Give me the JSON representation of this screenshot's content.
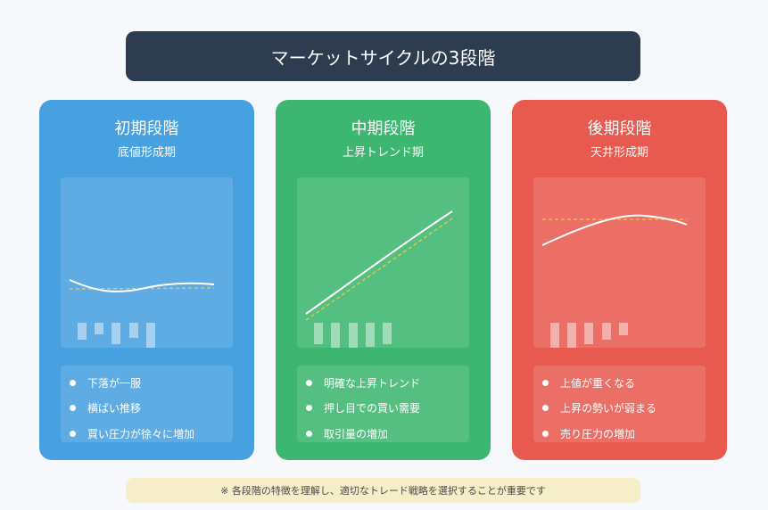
{
  "title": "マーケットサイクルの3段階",
  "note": "※ 各段階の特徴を理解し、適切なトレード戦略を選択することが重要です",
  "colors": {
    "title_bg": "#2e3c4f",
    "early": "#47a0df",
    "middle": "#3cb670",
    "late": "#e85a50",
    "guide_line": "#f2c744",
    "note_bg": "#f6edc9"
  },
  "stages": [
    {
      "title": "初期段階",
      "subtitle": "底値形成期",
      "items": [
        "下落が一服",
        "横ばい推移",
        "買い圧力が徐々に増加"
      ]
    },
    {
      "title": "中期段階",
      "subtitle": "上昇トレンド期",
      "items": [
        "明確な上昇トレンド",
        "押し目での買い需要",
        "取引量の増加"
      ]
    },
    {
      "title": "後期段階",
      "subtitle": "天井形成期",
      "items": [
        "上値が重くなる",
        "上昇の勢いが弱まる",
        "売り圧力の増加"
      ]
    }
  ]
}
